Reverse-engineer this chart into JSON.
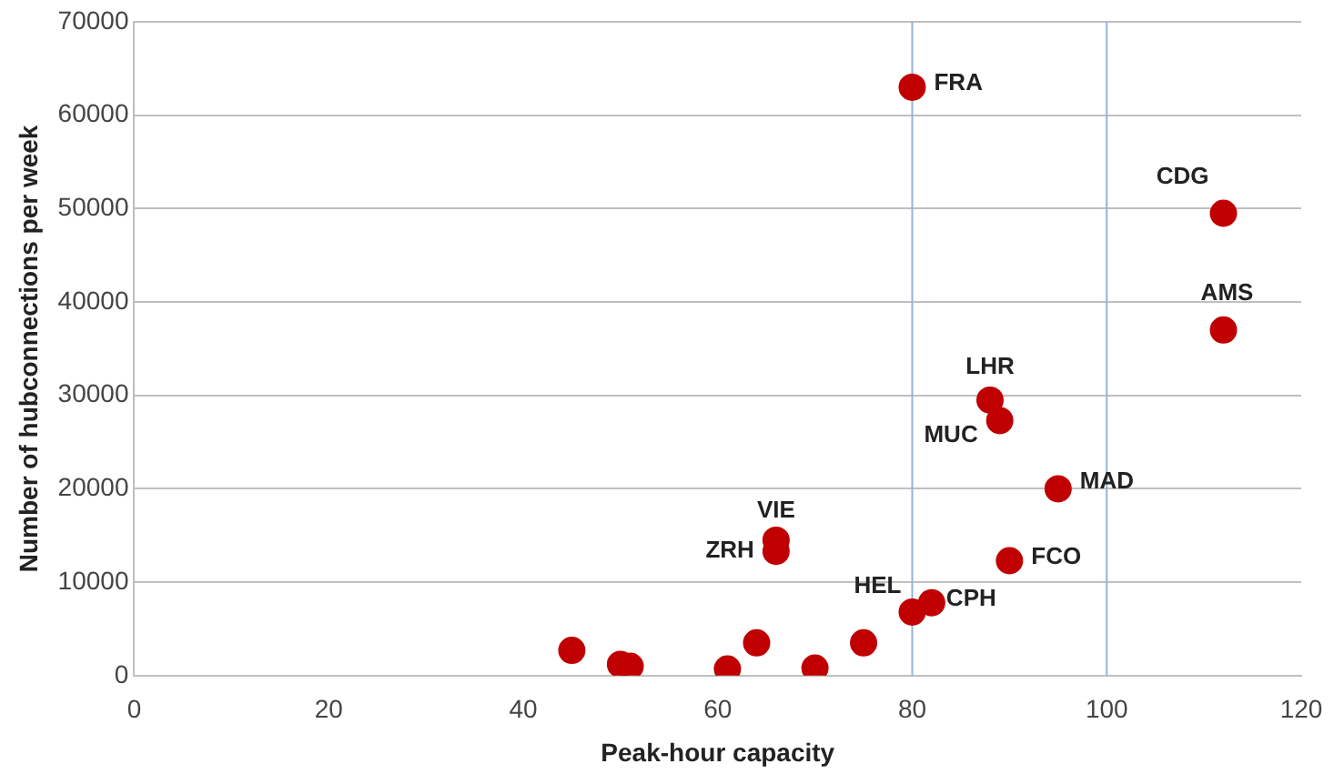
{
  "chart_data": {
    "type": "scatter",
    "xlabel": "Peak-hour capacity",
    "ylabel": "Number of hubconnections per week",
    "x": [
      45,
      50,
      51,
      61,
      64,
      70,
      75,
      80,
      82,
      66,
      66,
      90,
      95,
      89,
      88,
      80,
      112,
      112
    ],
    "series": [
      {
        "color": "#c00000",
        "values": [
          2700,
          1200,
          1000,
          700,
          3500,
          800,
          3500,
          6800,
          7800,
          14500,
          13300,
          12300,
          20000,
          27300,
          29500,
          63000,
          49500,
          37000
        ]
      }
    ],
    "xlim": [
      0,
      120
    ],
    "xticks": [
      0,
      20,
      40,
      60,
      80,
      100,
      120
    ],
    "ylim": [
      0,
      70000
    ],
    "yticks": [
      0,
      10000,
      20000,
      30000,
      40000,
      50000,
      60000,
      70000
    ],
    "grid": "y",
    "marker": "circle",
    "legend": false,
    "ref_lines": [
      {
        "axis": "x",
        "value": 80,
        "color": "#95b3d7"
      },
      {
        "axis": "x",
        "value": 100,
        "color": "#95b3d7"
      }
    ],
    "annotations": [
      {
        "text": "HEL",
        "x": 80,
        "y": 6800
      },
      {
        "text": "CPH",
        "x": 82,
        "y": 7800
      },
      {
        "text": "VIE",
        "x": 66,
        "y": 14500
      },
      {
        "text": "ZRH",
        "x": 66,
        "y": 13300
      },
      {
        "text": "FCO",
        "x": 90,
        "y": 12300
      },
      {
        "text": "MAD",
        "x": 95,
        "y": 20000
      },
      {
        "text": "MUC",
        "x": 89,
        "y": 27300
      },
      {
        "text": "LHR",
        "x": 88,
        "y": 29500
      },
      {
        "text": "FRA",
        "x": 80,
        "y": 63000
      },
      {
        "text": "CDG",
        "x": 112,
        "y": 49500
      },
      {
        "text": "AMS",
        "x": 112,
        "y": 37000
      }
    ]
  }
}
